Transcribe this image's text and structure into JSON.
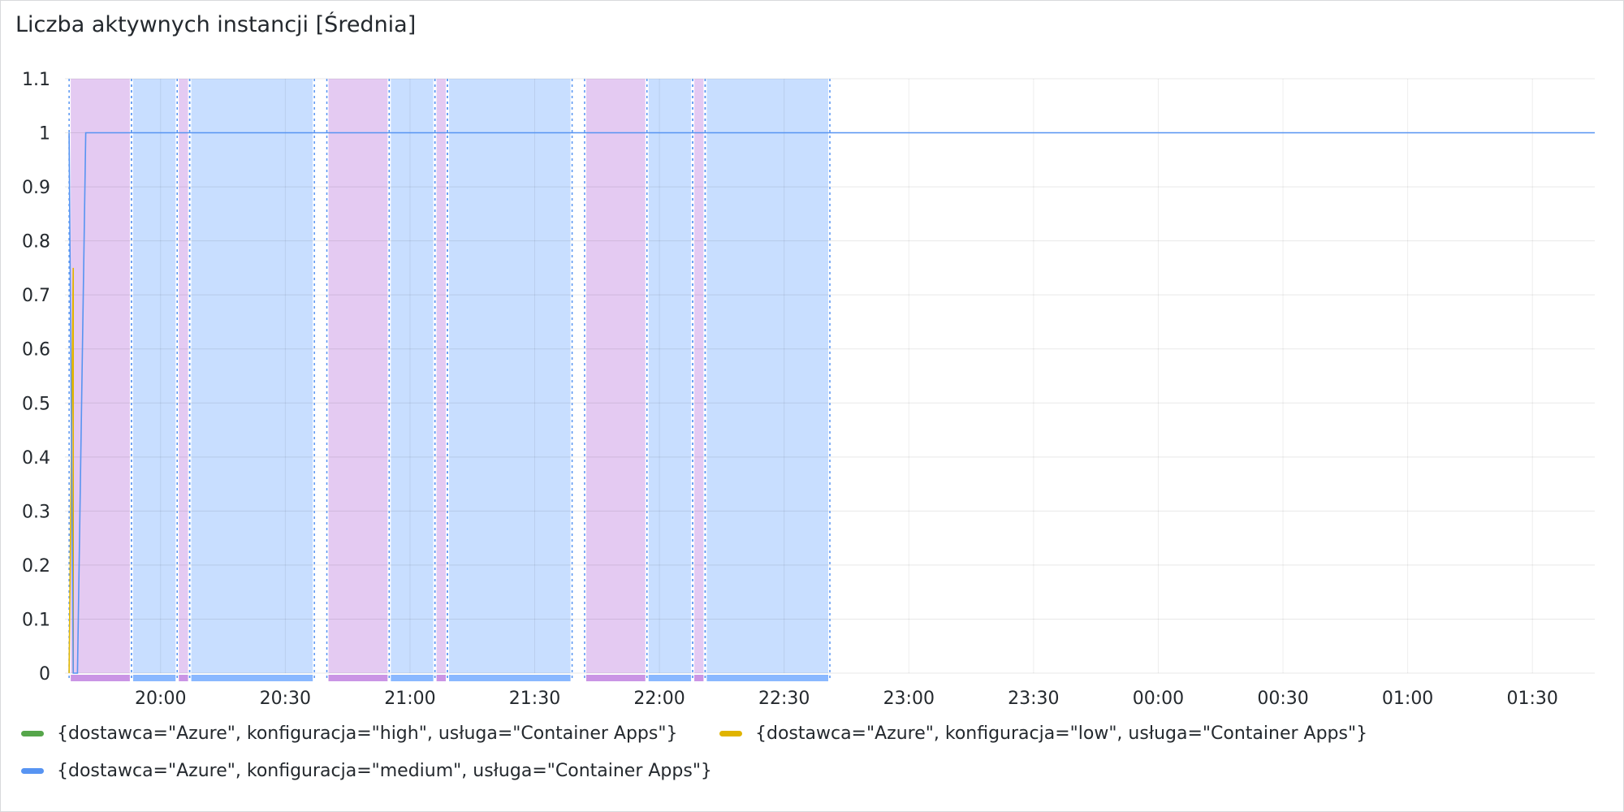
{
  "panel": {
    "title": "Liczba aktywnych instancji [Średnia]"
  },
  "chart_data": {
    "type": "line",
    "title": "Liczba aktywnych instancji [Średnia]",
    "xlabel": "",
    "ylabel": "",
    "ylim": [
      0,
      1.1
    ],
    "grid": true,
    "legend_position": "bottom",
    "y_ticks": [
      "0",
      "0.1",
      "0.2",
      "0.3",
      "0.4",
      "0.5",
      "0.6",
      "0.7",
      "0.8",
      "0.9",
      "1",
      "1.1"
    ],
    "x_range": [
      "19:37",
      "01:45"
    ],
    "x_ticks": [
      "20:00",
      "20:30",
      "21:00",
      "21:30",
      "22:00",
      "22:30",
      "23:00",
      "23:30",
      "00:00",
      "00:30",
      "01:00",
      "01:30"
    ],
    "series": [
      {
        "name": "{dostawca=\"Azure\", konfiguracja=\"high\", usługa=\"Container Apps\"}",
        "color": "#56a64b",
        "points": []
      },
      {
        "name": "{dostawca=\"Azure\", konfiguracja=\"low\", usługa=\"Container Apps\"}",
        "color": "#e0b400",
        "points": [
          {
            "x": "19:38",
            "y": 0
          },
          {
            "x": "19:39",
            "y": 0.75
          },
          {
            "x": "19:39",
            "y": 0
          }
        ]
      },
      {
        "name": "{dostawca=\"Azure\", konfiguracja=\"medium\", usługa=\"Container Apps\"}",
        "color": "#5794f2",
        "points": [
          {
            "x": "19:38",
            "y": 1
          },
          {
            "x": "19:39",
            "y": 0
          },
          {
            "x": "19:40",
            "y": 0
          },
          {
            "x": "19:42",
            "y": 1
          },
          {
            "x": "01:45",
            "y": 1
          }
        ]
      }
    ],
    "annotations": [
      {
        "type": "purple",
        "start": "19:38",
        "end": "19:53"
      },
      {
        "type": "blue",
        "start": "19:53",
        "end": "20:04"
      },
      {
        "type": "purple",
        "start": "20:04",
        "end": "20:07"
      },
      {
        "type": "blue",
        "start": "20:07",
        "end": "20:37"
      },
      {
        "type": "purple",
        "start": "20:40",
        "end": "20:55"
      },
      {
        "type": "blue",
        "start": "20:55",
        "end": "21:06"
      },
      {
        "type": "purple",
        "start": "21:06",
        "end": "21:09"
      },
      {
        "type": "blue",
        "start": "21:09",
        "end": "21:39"
      },
      {
        "type": "purple",
        "start": "21:42",
        "end": "21:57"
      },
      {
        "type": "blue",
        "start": "21:57",
        "end": "22:08"
      },
      {
        "type": "purple",
        "start": "22:08",
        "end": "22:11"
      },
      {
        "type": "blue",
        "start": "22:11",
        "end": "22:41"
      }
    ],
    "annotation_colors": {
      "purple": "#ca95e5",
      "blue": "#8ab8ff"
    }
  }
}
